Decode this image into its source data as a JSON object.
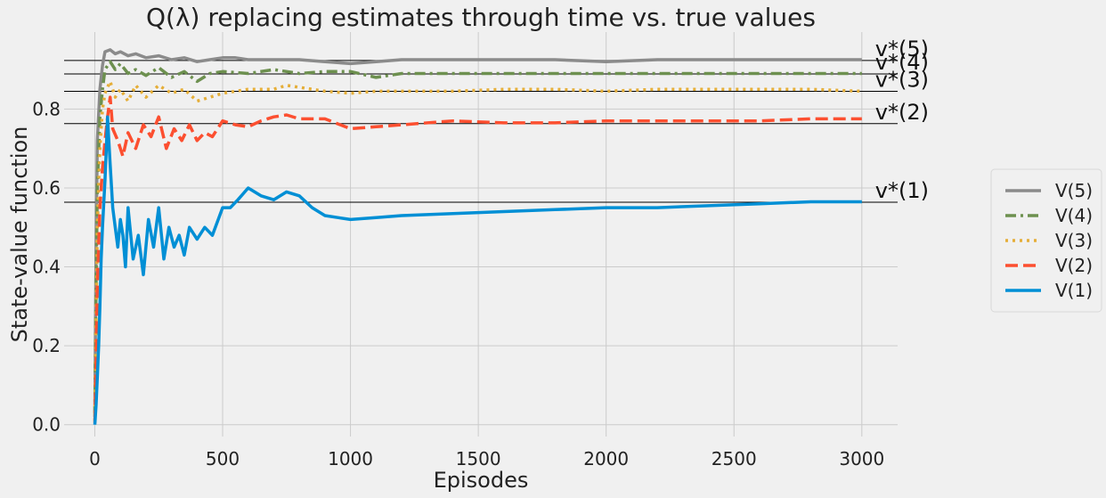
{
  "chart_data": {
    "type": "line",
    "title": "Q(λ) replacing estimates through time vs. true values",
    "xlabel": "Episodes",
    "ylabel": "State-value function",
    "xlim": [
      -120,
      3140
    ],
    "ylim": [
      -0.03,
      0.995
    ],
    "xticks": [
      0,
      500,
      1000,
      1500,
      2000,
      2500,
      3000
    ],
    "yticks": [
      0.0,
      0.2,
      0.4,
      0.6,
      0.8
    ],
    "grid": true,
    "legend_position": "right",
    "reference_lines": [
      {
        "label": "v*(1)",
        "value": 0.5637
      },
      {
        "label": "v*(2)",
        "value": 0.763
      },
      {
        "label": "v*(3)",
        "value": 0.8448
      },
      {
        "label": "v*(4)",
        "value": 0.8889
      },
      {
        "label": "v*(5)",
        "value": 0.9231
      }
    ],
    "series": [
      {
        "name": "V(5)",
        "color": "#8b8b8b",
        "style": "solid",
        "points": [
          [
            0,
            0.03
          ],
          [
            5,
            0.45
          ],
          [
            10,
            0.72
          ],
          [
            20,
            0.85
          ],
          [
            30,
            0.91
          ],
          [
            40,
            0.945
          ],
          [
            60,
            0.95
          ],
          [
            80,
            0.94
          ],
          [
            100,
            0.945
          ],
          [
            130,
            0.935
          ],
          [
            160,
            0.94
          ],
          [
            200,
            0.93
          ],
          [
            250,
            0.935
          ],
          [
            300,
            0.925
          ],
          [
            350,
            0.93
          ],
          [
            400,
            0.92
          ],
          [
            450,
            0.925
          ],
          [
            500,
            0.93
          ],
          [
            550,
            0.93
          ],
          [
            600,
            0.925
          ],
          [
            700,
            0.925
          ],
          [
            800,
            0.925
          ],
          [
            900,
            0.92
          ],
          [
            1000,
            0.915
          ],
          [
            1100,
            0.92
          ],
          [
            1200,
            0.925
          ],
          [
            1400,
            0.925
          ],
          [
            1600,
            0.925
          ],
          [
            1800,
            0.925
          ],
          [
            2000,
            0.92
          ],
          [
            2200,
            0.925
          ],
          [
            2400,
            0.925
          ],
          [
            2600,
            0.925
          ],
          [
            2800,
            0.925
          ],
          [
            3000,
            0.925
          ]
        ]
      },
      {
        "name": "V(4)",
        "color": "#6d904f",
        "style": "dashdot",
        "points": [
          [
            0,
            0.02
          ],
          [
            5,
            0.35
          ],
          [
            10,
            0.6
          ],
          [
            20,
            0.78
          ],
          [
            30,
            0.85
          ],
          [
            40,
            0.9
          ],
          [
            60,
            0.92
          ],
          [
            80,
            0.9
          ],
          [
            100,
            0.915
          ],
          [
            130,
            0.89
          ],
          [
            160,
            0.9
          ],
          [
            200,
            0.885
          ],
          [
            250,
            0.905
          ],
          [
            300,
            0.88
          ],
          [
            350,
            0.895
          ],
          [
            400,
            0.87
          ],
          [
            450,
            0.89
          ],
          [
            500,
            0.895
          ],
          [
            600,
            0.89
          ],
          [
            700,
            0.9
          ],
          [
            800,
            0.89
          ],
          [
            900,
            0.895
          ],
          [
            1000,
            0.895
          ],
          [
            1100,
            0.88
          ],
          [
            1200,
            0.89
          ],
          [
            1400,
            0.89
          ],
          [
            1600,
            0.89
          ],
          [
            1800,
            0.89
          ],
          [
            2000,
            0.89
          ],
          [
            2200,
            0.89
          ],
          [
            2400,
            0.89
          ],
          [
            2600,
            0.89
          ],
          [
            2800,
            0.89
          ],
          [
            3000,
            0.89
          ]
        ]
      },
      {
        "name": "V(3)",
        "color": "#e5ae38",
        "style": "dotted",
        "points": [
          [
            0,
            0.01
          ],
          [
            5,
            0.25
          ],
          [
            10,
            0.5
          ],
          [
            20,
            0.7
          ],
          [
            30,
            0.8
          ],
          [
            40,
            0.84
          ],
          [
            60,
            0.87
          ],
          [
            80,
            0.83
          ],
          [
            100,
            0.85
          ],
          [
            130,
            0.82
          ],
          [
            160,
            0.86
          ],
          [
            200,
            0.83
          ],
          [
            250,
            0.86
          ],
          [
            300,
            0.84
          ],
          [
            350,
            0.85
          ],
          [
            400,
            0.82
          ],
          [
            450,
            0.83
          ],
          [
            500,
            0.84
          ],
          [
            600,
            0.85
          ],
          [
            700,
            0.85
          ],
          [
            750,
            0.86
          ],
          [
            800,
            0.855
          ],
          [
            900,
            0.845
          ],
          [
            1000,
            0.84
          ],
          [
            1100,
            0.845
          ],
          [
            1200,
            0.845
          ],
          [
            1400,
            0.845
          ],
          [
            1600,
            0.85
          ],
          [
            1800,
            0.85
          ],
          [
            2000,
            0.845
          ],
          [
            2200,
            0.85
          ],
          [
            2400,
            0.85
          ],
          [
            2600,
            0.85
          ],
          [
            2800,
            0.85
          ],
          [
            3000,
            0.845
          ]
        ]
      },
      {
        "name": "V(2)",
        "color": "#fc4f30",
        "style": "dashed",
        "points": [
          [
            0,
            0.005
          ],
          [
            5,
            0.15
          ],
          [
            10,
            0.35
          ],
          [
            20,
            0.55
          ],
          [
            30,
            0.65
          ],
          [
            40,
            0.72
          ],
          [
            50,
            0.78
          ],
          [
            60,
            0.83
          ],
          [
            70,
            0.75
          ],
          [
            90,
            0.72
          ],
          [
            100,
            0.7
          ],
          [
            110,
            0.68
          ],
          [
            130,
            0.74
          ],
          [
            160,
            0.7
          ],
          [
            190,
            0.76
          ],
          [
            220,
            0.73
          ],
          [
            250,
            0.78
          ],
          [
            280,
            0.7
          ],
          [
            310,
            0.75
          ],
          [
            340,
            0.72
          ],
          [
            370,
            0.76
          ],
          [
            400,
            0.72
          ],
          [
            430,
            0.74
          ],
          [
            460,
            0.73
          ],
          [
            500,
            0.77
          ],
          [
            550,
            0.76
          ],
          [
            600,
            0.755
          ],
          [
            650,
            0.77
          ],
          [
            700,
            0.78
          ],
          [
            750,
            0.785
          ],
          [
            800,
            0.775
          ],
          [
            900,
            0.775
          ],
          [
            1000,
            0.75
          ],
          [
            1100,
            0.755
          ],
          [
            1200,
            0.76
          ],
          [
            1400,
            0.77
          ],
          [
            1600,
            0.765
          ],
          [
            1800,
            0.765
          ],
          [
            2000,
            0.77
          ],
          [
            2200,
            0.77
          ],
          [
            2400,
            0.77
          ],
          [
            2600,
            0.77
          ],
          [
            2800,
            0.775
          ],
          [
            3000,
            0.775
          ]
        ]
      },
      {
        "name": "V(1)",
        "color": "#008fd5",
        "style": "solid",
        "points": [
          [
            0,
            0.0
          ],
          [
            5,
            0.05
          ],
          [
            10,
            0.12
          ],
          [
            15,
            0.2
          ],
          [
            20,
            0.3
          ],
          [
            25,
            0.42
          ],
          [
            30,
            0.5
          ],
          [
            35,
            0.56
          ],
          [
            40,
            0.62
          ],
          [
            45,
            0.7
          ],
          [
            50,
            0.78
          ],
          [
            55,
            0.72
          ],
          [
            60,
            0.66
          ],
          [
            70,
            0.55
          ],
          [
            80,
            0.5
          ],
          [
            90,
            0.45
          ],
          [
            100,
            0.52
          ],
          [
            110,
            0.48
          ],
          [
            120,
            0.4
          ],
          [
            130,
            0.55
          ],
          [
            150,
            0.42
          ],
          [
            170,
            0.48
          ],
          [
            190,
            0.38
          ],
          [
            210,
            0.52
          ],
          [
            230,
            0.45
          ],
          [
            250,
            0.55
          ],
          [
            270,
            0.42
          ],
          [
            290,
            0.5
          ],
          [
            310,
            0.45
          ],
          [
            330,
            0.48
          ],
          [
            350,
            0.43
          ],
          [
            370,
            0.5
          ],
          [
            400,
            0.47
          ],
          [
            430,
            0.5
          ],
          [
            460,
            0.48
          ],
          [
            500,
            0.55
          ],
          [
            530,
            0.55
          ],
          [
            560,
            0.57
          ],
          [
            600,
            0.6
          ],
          [
            650,
            0.58
          ],
          [
            700,
            0.57
          ],
          [
            750,
            0.59
          ],
          [
            800,
            0.58
          ],
          [
            850,
            0.55
          ],
          [
            900,
            0.53
          ],
          [
            950,
            0.525
          ],
          [
            1000,
            0.52
          ],
          [
            1100,
            0.525
          ],
          [
            1200,
            0.53
          ],
          [
            1400,
            0.535
          ],
          [
            1600,
            0.54
          ],
          [
            1800,
            0.545
          ],
          [
            2000,
            0.55
          ],
          [
            2200,
            0.55
          ],
          [
            2400,
            0.555
          ],
          [
            2600,
            0.56
          ],
          [
            2800,
            0.565
          ],
          [
            3000,
            0.565
          ]
        ]
      }
    ]
  }
}
